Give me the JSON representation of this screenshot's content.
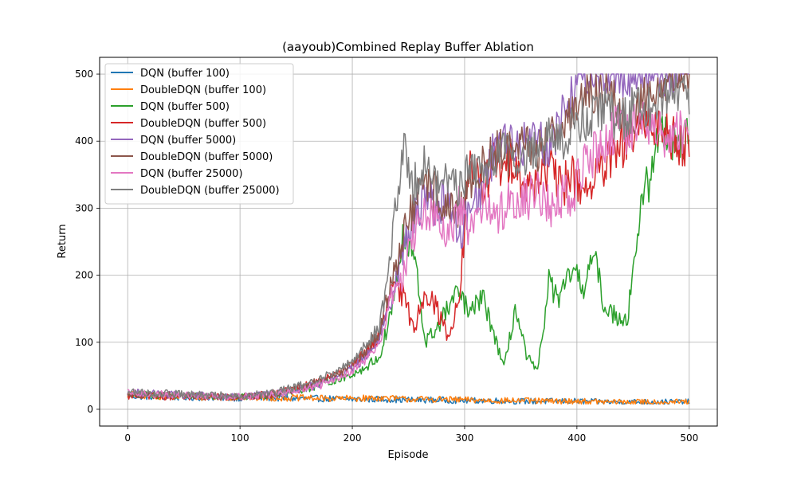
{
  "chart_data": {
    "type": "line",
    "title": "(aayoub)Combined Replay Buffer Ablation",
    "xlabel": "Episode",
    "ylabel": "Return",
    "xlim": [
      -25,
      525
    ],
    "ylim": [
      -25,
      525
    ],
    "xticks": [
      0,
      100,
      200,
      300,
      400,
      500
    ],
    "yticks": [
      0,
      100,
      200,
      300,
      400,
      500
    ],
    "grid": true,
    "legend_position": "top-left",
    "episodes": 500,
    "series": [
      {
        "name": "DQN (buffer 100)",
        "color": "#1f77b4",
        "x": [
          0,
          25,
          50,
          75,
          100,
          125,
          150,
          175,
          200,
          225,
          250,
          275,
          300,
          325,
          350,
          375,
          400,
          425,
          450,
          475,
          500
        ],
        "values": [
          20,
          19,
          18,
          18,
          17,
          17,
          16,
          16,
          15,
          15,
          14,
          14,
          13,
          13,
          12,
          12,
          12,
          11,
          11,
          11,
          11
        ]
      },
      {
        "name": "DoubleDQN (buffer 100)",
        "color": "#ff7f0e",
        "x": [
          0,
          25,
          50,
          75,
          100,
          125,
          150,
          175,
          200,
          225,
          250,
          275,
          300,
          325,
          350,
          375,
          400,
          425,
          450,
          475,
          500
        ],
        "values": [
          22,
          20,
          19,
          18,
          18,
          17,
          17,
          16,
          16,
          17,
          15,
          15,
          14,
          13,
          13,
          12,
          12,
          11,
          11,
          11,
          11
        ]
      },
      {
        "name": "DQN (buffer 500)",
        "color": "#2ca02c",
        "x": [
          0,
          50,
          100,
          130,
          160,
          190,
          210,
          225,
          235,
          245,
          255,
          265,
          275,
          285,
          295,
          305,
          315,
          325,
          335,
          345,
          355,
          365,
          375,
          385,
          395,
          405,
          415,
          425,
          435,
          445,
          455,
          465,
          475,
          490,
          500
        ],
        "values": [
          22,
          20,
          18,
          22,
          32,
          45,
          60,
          80,
          150,
          250,
          230,
          100,
          120,
          150,
          175,
          140,
          170,
          120,
          60,
          150,
          80,
          55,
          190,
          160,
          210,
          180,
          230,
          150,
          140,
          135,
          280,
          350,
          420,
          400,
          400
        ]
      },
      {
        "name": "DoubleDQN (buffer 500)",
        "color": "#d62728",
        "x": [
          0,
          50,
          100,
          130,
          160,
          190,
          210,
          225,
          235,
          245,
          255,
          265,
          275,
          285,
          295,
          305,
          315,
          325,
          335,
          345,
          355,
          365,
          375,
          385,
          395,
          405,
          415,
          425,
          435,
          445,
          455,
          465,
          475,
          490,
          500
        ],
        "values": [
          20,
          19,
          18,
          23,
          35,
          55,
          80,
          110,
          180,
          170,
          120,
          180,
          150,
          110,
          160,
          380,
          320,
          370,
          350,
          380,
          320,
          350,
          360,
          330,
          350,
          330,
          340,
          360,
          380,
          400,
          410,
          430,
          420,
          400,
          395
        ]
      },
      {
        "name": "DQN (buffer 5000)",
        "color": "#9467bd",
        "x": [
          0,
          50,
          100,
          130,
          160,
          190,
          210,
          225,
          235,
          245,
          255,
          265,
          275,
          285,
          295,
          305,
          315,
          325,
          335,
          345,
          355,
          365,
          375,
          385,
          395,
          405,
          415,
          425,
          435,
          445,
          455,
          465,
          475,
          490,
          500
        ],
        "values": [
          25,
          21,
          19,
          22,
          32,
          50,
          75,
          110,
          170,
          240,
          280,
          330,
          300,
          320,
          250,
          310,
          330,
          380,
          420,
          380,
          400,
          410,
          390,
          430,
          470,
          500,
          500,
          500,
          500,
          500,
          500,
          500,
          500,
          500,
          500
        ]
      },
      {
        "name": "DoubleDQN (buffer 5000)",
        "color": "#8c564b",
        "x": [
          0,
          50,
          100,
          130,
          160,
          190,
          210,
          225,
          235,
          245,
          255,
          265,
          275,
          285,
          295,
          305,
          315,
          325,
          335,
          345,
          355,
          365,
          375,
          385,
          395,
          405,
          415,
          425,
          435,
          445,
          455,
          465,
          475,
          490,
          500
        ],
        "values": [
          22,
          20,
          18,
          22,
          36,
          55,
          80,
          120,
          190,
          260,
          300,
          330,
          320,
          300,
          280,
          340,
          360,
          380,
          390,
          370,
          400,
          380,
          410,
          430,
          440,
          460,
          470,
          480,
          450,
          420,
          450,
          470,
          490,
          500,
          500
        ]
      },
      {
        "name": "DQN (buffer 25000)",
        "color": "#e377c2",
        "x": [
          0,
          50,
          100,
          130,
          160,
          190,
          210,
          225,
          235,
          245,
          255,
          265,
          275,
          285,
          295,
          305,
          315,
          325,
          335,
          345,
          355,
          365,
          375,
          385,
          395,
          405,
          415,
          425,
          435,
          445,
          455,
          465,
          475,
          490,
          500
        ],
        "values": [
          24,
          21,
          19,
          22,
          30,
          48,
          70,
          100,
          170,
          200,
          260,
          300,
          280,
          250,
          300,
          260,
          310,
          290,
          300,
          320,
          310,
          330,
          300,
          320,
          310,
          360,
          380,
          400,
          420,
          410,
          430,
          420,
          410,
          415,
          420
        ]
      },
      {
        "name": "DoubleDQN (buffer 25000)",
        "color": "#7f7f7f",
        "x": [
          0,
          50,
          100,
          130,
          160,
          190,
          210,
          225,
          235,
          245,
          255,
          265,
          275,
          285,
          295,
          305,
          315,
          325,
          335,
          345,
          355,
          365,
          375,
          385,
          395,
          405,
          415,
          425,
          435,
          445,
          455,
          465,
          475,
          490,
          500
        ],
        "values": [
          26,
          22,
          20,
          24,
          38,
          60,
          90,
          130,
          240,
          390,
          340,
          370,
          330,
          350,
          330,
          360,
          350,
          380,
          390,
          370,
          380,
          390,
          410,
          400,
          420,
          430,
          440,
          450,
          430,
          440,
          460,
          450,
          470,
          480,
          470
        ]
      }
    ]
  }
}
